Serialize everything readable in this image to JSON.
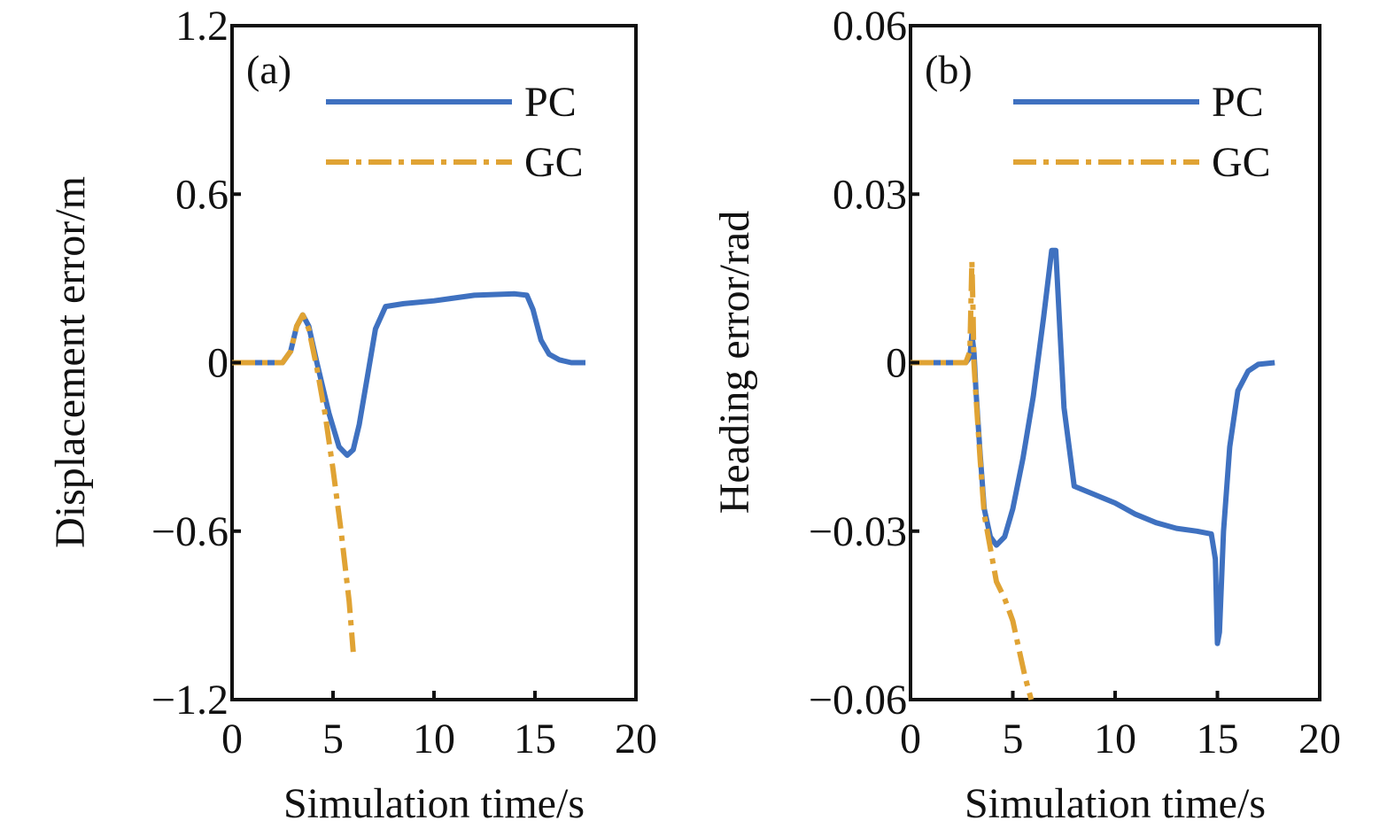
{
  "colors": {
    "pc": "#3f71c0",
    "gc": "#e0a334",
    "frame": "#111111"
  },
  "chart_data": [
    {
      "type": "line",
      "panel_tag": "(a)",
      "xlabel": "Simulation time/s",
      "ylabel": "Displacement error/m",
      "xlim": [
        0,
        20
      ],
      "ylim": [
        -1.2,
        1.2
      ],
      "xticks": [
        0,
        5,
        10,
        15,
        20
      ],
      "xtick_labels": [
        "0",
        "5",
        "10",
        "15",
        "20"
      ],
      "yticks": [
        1.2,
        0.6,
        0,
        -0.6,
        -1.2
      ],
      "ytick_labels": [
        "1.2",
        "0.6",
        "0",
        "−0.6",
        "−1.2"
      ],
      "legend": {
        "position": "top-right",
        "entries": [
          "PC",
          "GC"
        ]
      },
      "grid": false,
      "series": [
        {
          "name": "PC",
          "style": "solid",
          "x": [
            0,
            2.5,
            2.9,
            3.2,
            3.5,
            3.8,
            4.2,
            4.8,
            5.3,
            5.7,
            6.0,
            6.3,
            6.7,
            7.1,
            7.6,
            8.5,
            10,
            12,
            14,
            14.6,
            14.9,
            15.3,
            15.7,
            16.2,
            16.8,
            17.5
          ],
          "y": [
            0,
            0,
            0.04,
            0.13,
            0.17,
            0.13,
            0.0,
            -0.18,
            -0.3,
            -0.33,
            -0.31,
            -0.22,
            -0.05,
            0.12,
            0.2,
            0.21,
            0.22,
            0.24,
            0.245,
            0.24,
            0.19,
            0.08,
            0.03,
            0.01,
            0.0,
            0.0
          ]
        },
        {
          "name": "GC",
          "style": "dashdot",
          "x": [
            0,
            2.5,
            2.9,
            3.2,
            3.5,
            3.8,
            4.2,
            4.6,
            5.0,
            5.4,
            5.8,
            6.0
          ],
          "y": [
            0,
            0,
            0.04,
            0.13,
            0.17,
            0.12,
            -0.02,
            -0.18,
            -0.38,
            -0.6,
            -0.85,
            -1.03
          ]
        }
      ]
    },
    {
      "type": "line",
      "panel_tag": "(b)",
      "xlabel": "Simulation time/s",
      "ylabel": "Heading error/rad",
      "xlim": [
        0,
        20
      ],
      "ylim": [
        -0.06,
        0.06
      ],
      "xticks": [
        0,
        5,
        10,
        15,
        20
      ],
      "xtick_labels": [
        "0",
        "5",
        "10",
        "15",
        "20"
      ],
      "yticks": [
        0.06,
        0.03,
        0,
        -0.03,
        -0.06
      ],
      "ytick_labels": [
        "0.06",
        "0.03",
        "0",
        "−0.03",
        "−0.06"
      ],
      "legend": {
        "position": "top-right",
        "entries": [
          "PC",
          "GC"
        ]
      },
      "grid": false,
      "series": [
        {
          "name": "PC",
          "style": "solid",
          "x": [
            0,
            2.7,
            2.9,
            3.0,
            3.1,
            3.2,
            3.4,
            3.6,
            3.9,
            4.2,
            4.6,
            5.0,
            5.5,
            6.0,
            6.5,
            6.9,
            7.1,
            7.5,
            8.0,
            9,
            10,
            11,
            12,
            13,
            14,
            14.7,
            14.9,
            15.0,
            15.1,
            15.3,
            15.6,
            16.0,
            16.5,
            17.0,
            17.8
          ],
          "y": [
            0,
            0,
            0.001,
            0.005,
            0.002,
            -0.005,
            -0.016,
            -0.026,
            -0.031,
            -0.0325,
            -0.031,
            -0.026,
            -0.017,
            -0.006,
            0.008,
            0.02,
            0.02,
            -0.008,
            -0.022,
            -0.0235,
            -0.025,
            -0.027,
            -0.0285,
            -0.0295,
            -0.03,
            -0.0305,
            -0.035,
            -0.05,
            -0.048,
            -0.03,
            -0.015,
            -0.005,
            -0.0015,
            -0.0003,
            0
          ]
        },
        {
          "name": "GC",
          "style": "dashdot",
          "x": [
            0,
            2.7,
            2.9,
            3.0,
            3.05,
            3.1,
            3.2,
            3.4,
            3.6,
            3.9,
            4.2,
            4.6,
            5.0,
            5.3,
            5.6,
            5.9
          ],
          "y": [
            0,
            0,
            0.002,
            0.018,
            0.01,
            0.0,
            -0.006,
            -0.017,
            -0.027,
            -0.033,
            -0.039,
            -0.042,
            -0.046,
            -0.051,
            -0.056,
            -0.06
          ]
        }
      ]
    }
  ]
}
